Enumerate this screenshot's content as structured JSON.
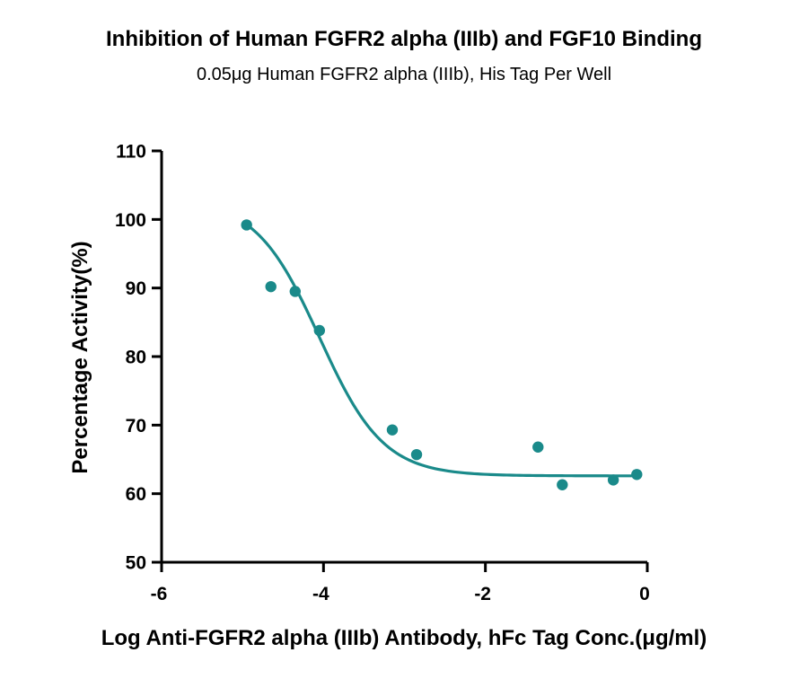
{
  "chart_data": {
    "type": "scatter",
    "title": "Inhibition of Human FGFR2 alpha (IIIb) and FGF10 Binding",
    "subtitle": "0.05μg Human FGFR2 alpha (IIIb), His Tag Per Well",
    "xlabel": "Log Anti-FGFR2 alpha (IIIb) Antibody, hFc Tag Conc.(μg/ml)",
    "ylabel": "Percentage Activity(%)",
    "xlim": [
      -6,
      0
    ],
    "ylim": [
      50,
      110
    ],
    "xticks": [
      "-6",
      "-4",
      "-2",
      "0"
    ],
    "yticks": [
      "50",
      "60",
      "70",
      "80",
      "90",
      "100",
      "110"
    ],
    "grid": false,
    "color": "#1a8a8a",
    "series": [
      {
        "points": [
          {
            "x": -4.95,
            "y": 99.2
          },
          {
            "x": -4.65,
            "y": 90.2
          },
          {
            "x": -4.35,
            "y": 89.5
          },
          {
            "x": -4.05,
            "y": 83.8
          },
          {
            "x": -3.15,
            "y": 69.3
          },
          {
            "x": -2.85,
            "y": 65.7
          },
          {
            "x": -1.35,
            "y": 66.8
          },
          {
            "x": -1.05,
            "y": 61.3
          },
          {
            "x": -0.42,
            "y": 62.0
          },
          {
            "x": -0.13,
            "y": 62.8
          }
        ],
        "fit": {
          "model": "4PL",
          "bottom": 62.6,
          "top": 103,
          "log_ic50": -4.05,
          "hill": 1.1
        }
      }
    ]
  }
}
